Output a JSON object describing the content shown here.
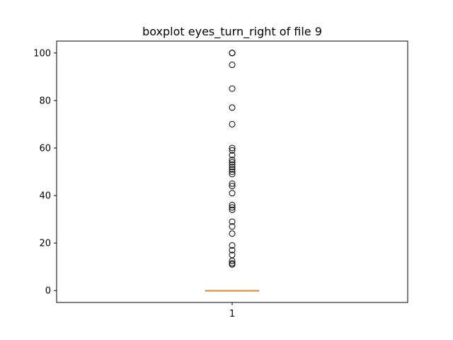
{
  "chart_data": {
    "type": "boxplot",
    "title": "boxplot eyes_turn_right of file 9",
    "xlabel": "",
    "ylabel": "",
    "categories": [
      "1"
    ],
    "ylim": [
      -5,
      105
    ],
    "yticks": [
      0,
      20,
      40,
      60,
      80,
      100
    ],
    "grid": false,
    "legend": "none",
    "boxes": [
      {
        "category": "1",
        "whisker_low": 0,
        "q1": 0,
        "median": 0,
        "q3": 0,
        "whisker_high": 0,
        "outliers": [
          100,
          100,
          100,
          95,
          85,
          77,
          70,
          60,
          59,
          57,
          55,
          54,
          53,
          52,
          51,
          50,
          49,
          45,
          44,
          41,
          36,
          35,
          34,
          29,
          27,
          24,
          19,
          17,
          15,
          12.5,
          11.5,
          11
        ]
      }
    ],
    "colors": {
      "median": "#ff7f0e",
      "box": "#000000",
      "outlier_edge": "#000000"
    }
  }
}
